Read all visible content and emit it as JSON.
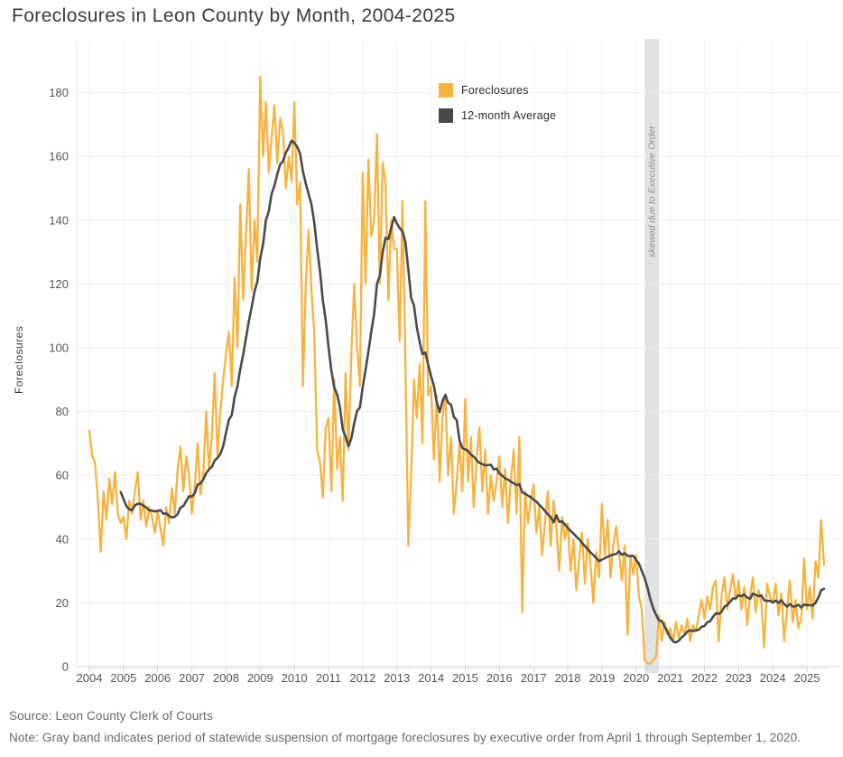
{
  "title": "Foreclosures in Leon County by Month, 2004-2025",
  "legend": {
    "foreclosures_label": "Foreclosures",
    "average_label": "12-month Average"
  },
  "footer": {
    "source": "Source: Leon County Clerk of Courts",
    "note": "Note: Gray band indicates period of statewide suspension of mortgage foreclosures by executive order from April 1 through September 1, 2020."
  },
  "chart_data": {
    "type": "line",
    "title": "Foreclosures in Leon County by Month, 2004-2025",
    "xlabel": "",
    "ylabel": "Foreclosures",
    "ylim": [
      0,
      196
    ],
    "yticks": [
      0,
      20,
      40,
      60,
      80,
      100,
      120,
      140,
      160,
      180
    ],
    "x_start": "2004-01",
    "x_frequency": "monthly",
    "x_year_labels": [
      "2004",
      "2005",
      "2006",
      "2007",
      "2008",
      "2009",
      "2010",
      "2011",
      "2012",
      "2013",
      "2014",
      "2015",
      "2016",
      "2017",
      "2018",
      "2019",
      "2020",
      "2021",
      "2022",
      "2023",
      "2024",
      "2025"
    ],
    "grid": true,
    "legend_position": "top-center",
    "series": [
      {
        "name": "Foreclosures",
        "color": "#F6B340",
        "values": [
          74,
          66,
          64,
          52,
          36,
          55,
          46,
          59,
          51,
          61,
          48,
          45,
          47,
          40,
          52,
          48,
          55,
          61,
          46,
          52,
          44,
          50,
          47,
          42,
          49,
          43,
          38,
          50,
          45,
          56,
          48,
          62,
          69,
          55,
          66,
          60,
          48,
          56,
          70,
          54,
          60,
          80,
          62,
          72,
          92,
          66,
          80,
          90,
          98,
          105,
          88,
          122,
          100,
          145,
          115,
          135,
          156,
          118,
          140,
          127,
          185,
          160,
          177,
          155,
          166,
          176,
          158,
          172,
          168,
          150,
          160,
          152,
          177,
          145,
          152,
          88,
          120,
          137,
          118,
          105,
          68,
          64,
          53,
          75,
          78,
          55,
          90,
          62,
          72,
          52,
          92,
          68,
          98,
          120,
          100,
          88,
          155,
          120,
          159,
          135,
          140,
          167,
          120,
          158,
          152,
          115,
          140,
          131,
          131,
          102,
          146,
          95,
          38,
          60,
          90,
          78,
          95,
          70,
          146,
          85,
          88,
          65,
          85,
          58,
          78,
          85,
          60,
          72,
          48,
          58,
          70,
          55,
          84,
          58,
          72,
          50,
          65,
          75,
          55,
          68,
          48,
          60,
          52,
          58,
          66,
          50,
          62,
          45,
          58,
          68,
          48,
          72,
          17,
          55,
          45,
          52,
          57,
          42,
          50,
          35,
          45,
          55,
          38,
          52,
          44,
          30,
          47,
          40,
          45,
          30,
          40,
          24,
          34,
          42,
          26,
          40,
          32,
          20,
          36,
          28,
          51,
          35,
          46,
          28,
          38,
          44,
          36,
          27,
          38,
          10,
          35,
          29,
          35,
          22,
          18,
          2,
          1,
          1,
          2,
          3,
          16,
          8,
          14,
          10,
          12,
          8,
          14,
          9,
          13,
          10,
          15,
          8,
          13,
          11,
          16,
          21,
          15,
          22,
          18,
          25,
          27,
          8,
          22,
          28,
          18,
          24,
          29,
          21,
          27,
          18,
          25,
          13,
          22,
          28,
          17,
          24,
          20,
          6,
          26,
          22,
          20,
          26,
          16,
          23,
          8,
          18,
          27,
          14,
          21,
          12,
          15,
          34,
          18,
          25,
          15,
          33,
          28,
          46,
          32
        ]
      },
      {
        "name": "12-month Average",
        "color": "#4A4A4A",
        "derived": "trailing_12_month_average_of_first_series"
      }
    ],
    "band": {
      "label": "skewed due to Executive Order",
      "start_month": "2020-04",
      "end_month": "2020-09",
      "color": "#e2e2e2",
      "label_color": "#909090"
    }
  }
}
